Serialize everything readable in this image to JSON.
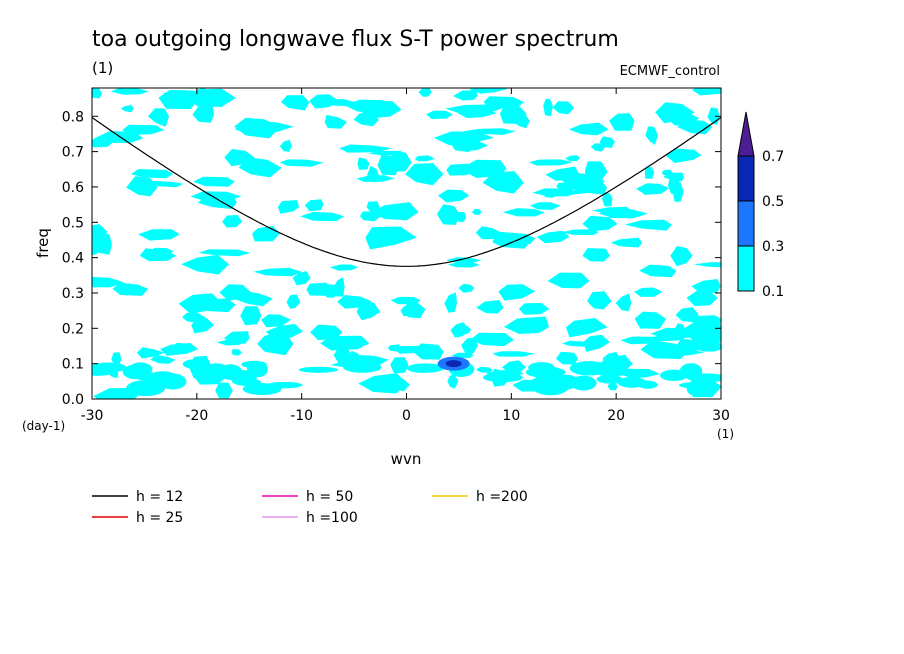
{
  "chart_data": {
    "type": "heatmap",
    "title": "toa outgoing longwave flux S-T power spectrum",
    "subtitle": "(1)",
    "label_right": "ECMWF_control",
    "xlabel": "wvn",
    "ylabel": "freq",
    "x_unit": "(1)",
    "y_unit": "(day-1)",
    "xlim": [
      -30,
      30
    ],
    "ylim": [
      0,
      0.88
    ],
    "x_ticks": [
      -30,
      -20,
      -10,
      0,
      10,
      20,
      30
    ],
    "y_ticks": [
      0.0,
      0.1,
      0.2,
      0.3,
      0.4,
      0.5,
      0.6,
      0.7,
      0.8
    ],
    "x_tick_labels": [
      "-30",
      "-20",
      "-10",
      "0",
      "10",
      "20",
      "30"
    ],
    "y_tick_labels": [
      "0.0",
      "0.1",
      "0.2",
      "0.3",
      "0.4",
      "0.5",
      "0.6",
      "0.7",
      "0.8"
    ],
    "colorbar": {
      "levels": [
        "0.1",
        "0.3",
        "0.5",
        "0.7"
      ],
      "colors": [
        "#00ffff",
        "#1e78ff",
        "#0a28b4",
        "#4b1e96"
      ]
    },
    "curves": [
      {
        "label": "h = 12",
        "h": 12,
        "color": "#000000"
      },
      {
        "label": "h = 25",
        "h": 25,
        "color": "#e60000"
      },
      {
        "label": "h = 50",
        "h": 50,
        "color": "#e600b4"
      },
      {
        "label": "h =100",
        "h": 100,
        "color": "#e696e6"
      },
      {
        "label": "h =200",
        "h": 200,
        "color": "#f0c800"
      }
    ],
    "features": [
      {
        "x": 4.5,
        "y": 0.1,
        "level": 0.5
      }
    ]
  }
}
